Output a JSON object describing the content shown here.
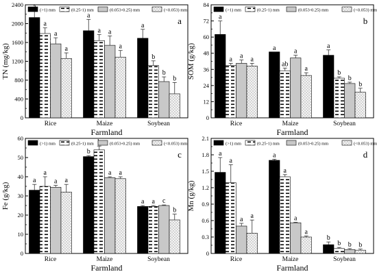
{
  "legend": [
    "(>1) mm",
    "(0.25-1) mm",
    "(0.053-0.25) mm",
    "(<0.053) mm"
  ],
  "colors": {
    "s0": "#000000",
    "s1": "#ffffff",
    "s2": "#c8c8c8",
    "s3": "#f4f4f4"
  },
  "chart_data": [
    {
      "type": "bar",
      "panel_label": "a",
      "title": "",
      "xlabel": "Farmland",
      "ylabel": "TN (mg/kg)",
      "categories": [
        "Rice",
        "Maize",
        "Soybean"
      ],
      "ylim": [
        0,
        2400
      ],
      "yticks": [
        0,
        400,
        800,
        1200,
        1600,
        2000,
        2400
      ],
      "series": [
        {
          "name": "(>1) mm",
          "values": [
            2130,
            1850,
            1690
          ],
          "errors": [
            150,
            240,
            190
          ],
          "letters": [
            "a",
            "a",
            "a"
          ]
        },
        {
          "name": "(0.25-1) mm",
          "values": [
            1790,
            1640,
            1110
          ],
          "errors": [
            120,
            130,
            100
          ],
          "letters": [
            "a",
            "a",
            "b"
          ]
        },
        {
          "name": "(0.053-0.25) mm",
          "values": [
            1570,
            1540,
            770
          ],
          "errors": [
            130,
            200,
            100
          ],
          "letters": [
            "a",
            "a",
            "b"
          ]
        },
        {
          "name": "(<0.053) mm",
          "values": [
            1260,
            1290,
            510
          ],
          "errors": [
            120,
            140,
            240
          ],
          "letters": [
            "a",
            "a",
            "b"
          ]
        }
      ]
    },
    {
      "type": "bar",
      "panel_label": "b",
      "title": "",
      "xlabel": "Farmland",
      "ylabel": "SOM (g/kg)",
      "categories": [
        "Rice",
        "Maize",
        "Soybean"
      ],
      "ylim": [
        0,
        84
      ],
      "yticks": [
        0,
        12,
        24,
        36,
        48,
        60,
        72,
        84
      ],
      "series": [
        {
          "name": "(>1) mm",
          "values": [
            62,
            49,
            46.5
          ],
          "errors": [
            10,
            0,
            4
          ],
          "letters": [
            "a",
            "a",
            "a"
          ]
        },
        {
          "name": "(0.25-1) mm",
          "values": [
            39,
            35,
            29.5
          ],
          "errors": [
            1.5,
            2,
            1
          ],
          "letters": [
            "a",
            "ab",
            "b"
          ]
        },
        {
          "name": "(0.053-0.25) mm",
          "values": [
            40.5,
            44.5,
            25.5
          ],
          "errors": [
            2.5,
            2,
            1
          ],
          "letters": [
            "a",
            "a",
            "b"
          ]
        },
        {
          "name": "(<0.053) mm",
          "values": [
            38.5,
            31.5,
            19
          ],
          "errors": [
            2,
            2,
            3
          ],
          "letters": [
            "a",
            "a",
            "b"
          ]
        }
      ]
    },
    {
      "type": "bar",
      "panel_label": "c",
      "title": "",
      "xlabel": "Farmland",
      "ylabel": "Fe (g/kg)",
      "categories": [
        "Rice",
        "Maize",
        "Soybean"
      ],
      "ylim": [
        0,
        60
      ],
      "yticks": [
        0,
        10,
        20,
        30,
        40,
        50,
        60
      ],
      "series": [
        {
          "name": "(>1) mm",
          "values": [
            33,
            50.5,
            24.5
          ],
          "errors": [
            3,
            0.5,
            0.5
          ],
          "letters": [
            "a",
            "b",
            "a"
          ]
        },
        {
          "name": "(0.25-1) mm",
          "values": [
            35,
            54,
            24.5
          ],
          "errors": [
            5,
            2,
            0.5
          ],
          "letters": [
            "a",
            "b",
            "a"
          ]
        },
        {
          "name": "(0.053-0.25) mm",
          "values": [
            34.5,
            39.5,
            25
          ],
          "errors": [
            1,
            0.5,
            0.3
          ],
          "letters": [
            "a",
            "a",
            "c"
          ]
        },
        {
          "name": "(<0.053) mm",
          "values": [
            32,
            39,
            17.5
          ],
          "errors": [
            4,
            1,
            3
          ],
          "letters": [
            "a",
            "a",
            "b"
          ]
        }
      ]
    },
    {
      "type": "bar",
      "panel_label": "d",
      "title": "",
      "xlabel": "Farmland",
      "ylabel": "Mn (g/kg)",
      "categories": [
        "Rice",
        "Maize",
        "Soybean"
      ],
      "ylim": [
        0,
        2.1
      ],
      "yticks": [
        0,
        0.3,
        0.6,
        0.9,
        1.2,
        1.5,
        1.8,
        2.1
      ],
      "series": [
        {
          "name": "(>1) mm",
          "values": [
            1.48,
            1.7,
            0.16
          ],
          "errors": [
            0.27,
            0.02,
            0.05
          ],
          "letters": [
            "a",
            "a",
            "b"
          ]
        },
        {
          "name": "(0.25-1) mm",
          "values": [
            1.29,
            1.4,
            0.09
          ],
          "errors": [
            0.33,
            0.04,
            0.02
          ],
          "letters": [
            "a",
            "a",
            "b"
          ]
        },
        {
          "name": "(0.053-0.25) mm",
          "values": [
            0.5,
            0.56,
            0.07
          ],
          "errors": [
            0.05,
            0.01,
            0.02
          ],
          "letters": [
            "a",
            "a",
            "b"
          ]
        },
        {
          "name": "(<0.053) mm",
          "values": [
            0.37,
            0.3,
            0.06
          ],
          "errors": [
            0.24,
            0.02,
            0.02
          ],
          "letters": [
            "a",
            "a",
            "b"
          ]
        }
      ]
    }
  ]
}
